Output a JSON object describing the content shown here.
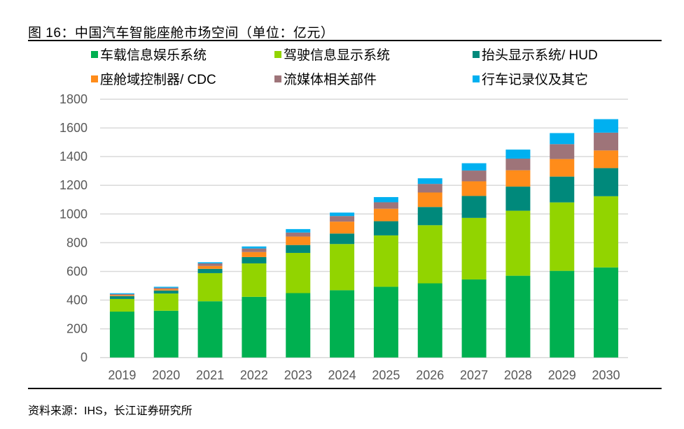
{
  "title": "图 16：中国汽车智能座舱市场空间（单位：亿元）",
  "source": "资料来源：IHS，长江证券研究所",
  "chart_data": {
    "type": "bar",
    "stacked": true,
    "title": "中国汽车智能座舱市场空间（单位：亿元）",
    "xlabel": "",
    "ylabel": "",
    "ylim": [
      0,
      1800
    ],
    "yticks": [
      0,
      200,
      400,
      600,
      800,
      1000,
      1200,
      1400,
      1600,
      1800
    ],
    "ytick_labels": [
      "0",
      "200",
      "400",
      "600",
      "800",
      "1000",
      "1200",
      "1400",
      "1600",
      "1800"
    ],
    "grid": true,
    "legend_position": "top",
    "categories": [
      "2019",
      "2020",
      "2021",
      "2022",
      "2023",
      "2024",
      "2025",
      "2026",
      "2027",
      "2028",
      "2029",
      "2030"
    ],
    "series": [
      {
        "name": "车载信息娱乐系统",
        "color": "#00B050",
        "values": [
          320,
          326,
          392,
          423,
          449,
          469,
          493,
          517,
          544,
          570,
          604,
          628
        ]
      },
      {
        "name": "驾驶信息显示系统",
        "color": "#92D400",
        "values": [
          88,
          120,
          196,
          233,
          280,
          322,
          358,
          405,
          429,
          453,
          477,
          496
        ]
      },
      {
        "name": "抬头显示系统/ HUD",
        "color": "#00897B",
        "values": [
          20,
          21,
          30,
          44,
          55,
          73,
          99,
          127,
          153,
          168,
          180,
          196
        ]
      },
      {
        "name": "座舱域控制器/ CDC",
        "color": "#FF8C1A",
        "values": [
          7,
          10,
          20,
          35,
          59,
          83,
          87,
          101,
          102,
          114,
          122,
          123
        ]
      },
      {
        "name": "流媒体相关部件",
        "color": "#9E7479",
        "values": [
          7,
          9,
          18,
          25,
          28,
          39,
          45,
          60,
          75,
          81,
          104,
          124
        ]
      },
      {
        "name": "行车记录仪及其它",
        "color": "#00B0F0",
        "values": [
          6,
          7,
          8,
          14,
          24,
          24,
          36,
          39,
          51,
          63,
          77,
          94
        ]
      }
    ]
  }
}
